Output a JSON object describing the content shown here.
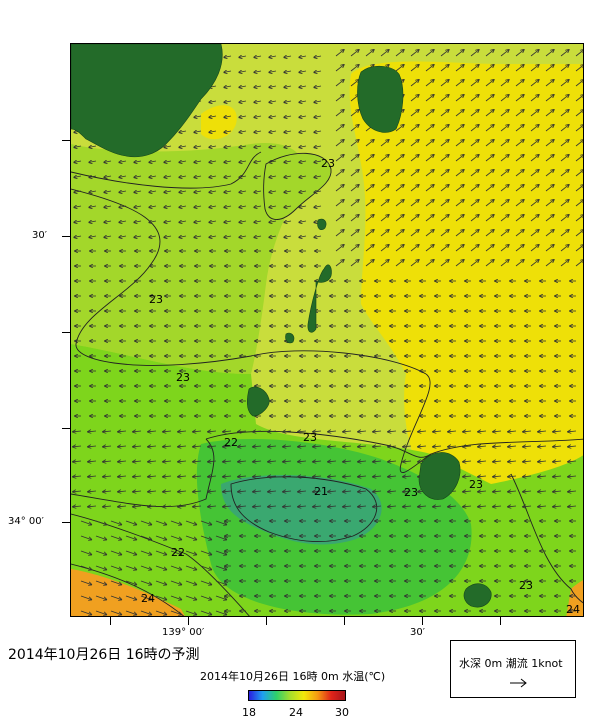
{
  "map": {
    "latitude_labels": [
      "30′",
      "34° 00′"
    ],
    "longitude_labels": [
      "139° 00′",
      "30′"
    ],
    "contour_labels": [
      "23",
      "23",
      "23",
      "23",
      "22",
      "21",
      "23",
      "22",
      "23",
      "23",
      "24",
      "24"
    ]
  },
  "caption": "2014年10月26日  16時の予測",
  "colorbar": {
    "title": "2014年10月26日  16時 0m 水温(℃)",
    "tick_labels": [
      "18",
      "24",
      "30"
    ],
    "min": 18,
    "max": 30,
    "colors": [
      "#2a1de0",
      "#1fa0f0",
      "#2fd06a",
      "#a6de2c",
      "#f2e80a",
      "#f59a12",
      "#e0241a",
      "#a8141a"
    ]
  },
  "legend": {
    "label": "水深 0m  潮流 1knot",
    "arrow_glyph": "→"
  },
  "colors": {
    "land": "#236b29",
    "yellow": "#eee008",
    "yellow_green": "#c9dd3c",
    "light_green": "#a3d72a",
    "green": "#7ed51c",
    "mid_green": "#45c435",
    "teal": "#3aa870",
    "orange": "#f0a020"
  }
}
